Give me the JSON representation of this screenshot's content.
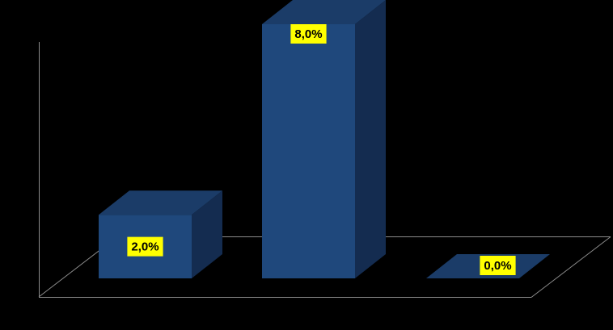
{
  "chart_data": {
    "type": "bar3d",
    "categories": [
      null,
      null,
      null
    ],
    "values": [
      2,
      8,
      0
    ],
    "value_labels": [
      "2,0%",
      "8,0%",
      "0,0%"
    ],
    "ylim": [
      0,
      8
    ],
    "color": "#1f487c"
  }
}
